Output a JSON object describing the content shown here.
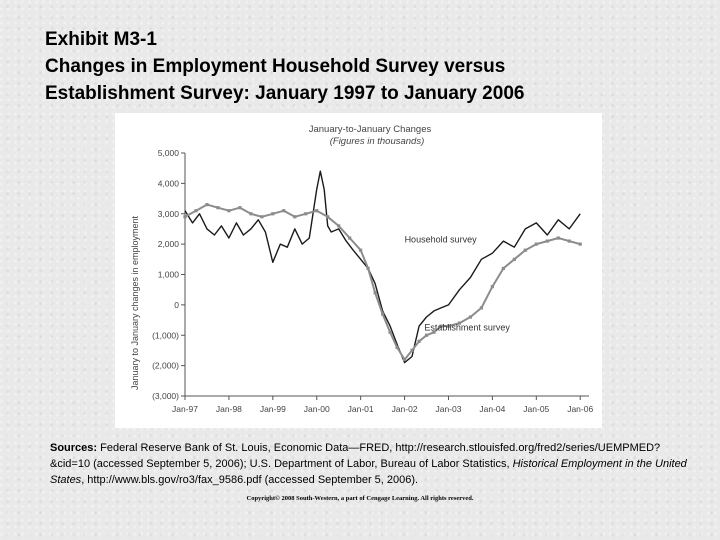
{
  "header": {
    "exhibit": "Exhibit M3-1",
    "title_line1": "Changes in Employment Household Survey versus",
    "title_line2": "Establishment Survey: January 1997 to January 2006"
  },
  "chart_data": {
    "type": "line",
    "title": "January-to-January Changes",
    "subtitle": "(Figures in thousands)",
    "xlabel": "",
    "ylabel": "January to January changes in employment",
    "xlim": [
      1997,
      2006.2
    ],
    "ylim": [
      -3000,
      5000
    ],
    "y_ticks": [
      5000,
      4000,
      3000,
      2000,
      1000,
      0,
      -1000,
      -2000,
      -3000
    ],
    "y_tick_labels": [
      "5,000",
      "4,000",
      "3,000",
      "2,000",
      "1,000",
      "0",
      "(1,000)",
      "(2,000)",
      "(3,000)"
    ],
    "x_ticks": [
      1997,
      1998,
      1999,
      2000,
      2001,
      2002,
      2003,
      2004,
      2005,
      2006
    ],
    "x_tick_labels": [
      "Jan-97",
      "Jan-98",
      "Jan-99",
      "Jan-00",
      "Jan-01",
      "Jan-02",
      "Jan-03",
      "Jan-04",
      "Jan-05",
      "Jan-06"
    ],
    "grid": false,
    "series": [
      {
        "name": "Household survey",
        "color": "#1a1a1a",
        "marker": "none",
        "x": [
          1997.0,
          1997.17,
          1997.33,
          1997.5,
          1997.67,
          1997.83,
          1998.0,
          1998.17,
          1998.33,
          1998.5,
          1998.67,
          1998.83,
          1999.0,
          1999.17,
          1999.33,
          1999.5,
          1999.67,
          1999.83,
          2000.0,
          2000.08,
          2000.17,
          2000.25,
          2000.33,
          2000.5,
          2000.67,
          2000.83,
          2001.0,
          2001.17,
          2001.33,
          2001.5,
          2001.67,
          2001.83,
          2002.0,
          2002.17,
          2002.33,
          2002.5,
          2002.67,
          2002.83,
          2003.0,
          2003.25,
          2003.5,
          2003.75,
          2004.0,
          2004.25,
          2004.5,
          2004.75,
          2005.0,
          2005.25,
          2005.5,
          2005.75,
          2006.0
        ],
        "y": [
          3100,
          2700,
          3000,
          2500,
          2300,
          2600,
          2200,
          2700,
          2300,
          2500,
          2800,
          2400,
          1400,
          2000,
          1900,
          2500,
          2000,
          2200,
          3800,
          4400,
          3800,
          2600,
          2400,
          2500,
          2100,
          1800,
          1500,
          1200,
          700,
          -200,
          -700,
          -1300,
          -1900,
          -1700,
          -700,
          -400,
          -200,
          -100,
          0,
          500,
          900,
          1500,
          1700,
          2100,
          1900,
          2500,
          2700,
          2300,
          2800,
          2500,
          3000
        ]
      },
      {
        "name": "Establishment survey",
        "color": "#8c8c8c",
        "marker": "square",
        "x": [
          1997.0,
          1997.25,
          1997.5,
          1997.75,
          1998.0,
          1998.25,
          1998.5,
          1998.75,
          1999.0,
          1999.25,
          1999.5,
          1999.75,
          2000.0,
          2000.25,
          2000.5,
          2000.75,
          2001.0,
          2001.17,
          2001.33,
          2001.5,
          2001.67,
          2001.83,
          2002.0,
          2002.17,
          2002.33,
          2002.5,
          2002.67,
          2002.83,
          2003.0,
          2003.25,
          2003.5,
          2003.75,
          2004.0,
          2004.25,
          2004.5,
          2004.75,
          2005.0,
          2005.25,
          2005.5,
          2005.75,
          2006.0
        ],
        "y": [
          2900,
          3100,
          3300,
          3200,
          3100,
          3200,
          3000,
          2900,
          3000,
          3100,
          2900,
          3000,
          3100,
          2900,
          2600,
          2200,
          1800,
          1200,
          400,
          -300,
          -900,
          -1400,
          -1800,
          -1500,
          -1200,
          -1000,
          -900,
          -700,
          -700,
          -600,
          -400,
          -100,
          600,
          1200,
          1500,
          1800,
          2000,
          2100,
          2200,
          2100,
          2000
        ]
      }
    ],
    "annotations": [
      {
        "text": "Household survey",
        "x": 2002.0,
        "y": 2050
      },
      {
        "text": "Establishment survey",
        "x": 2002.45,
        "y": -850
      }
    ]
  },
  "sources": {
    "label": "Sources:",
    "text1": " Federal Reserve Bank of St. Louis, Economic Data—FRED, http://research.stlouisfed.org/fred2/series/UEMPMED?&cid=10 (accessed September 5, 2006); U.S. Department of Labor, Bureau of Labor Statistics, ",
    "italic": "Historical Employment in the United States",
    "text2": ", http://www.bls.gov/ro3/fax_9586.pdf (accessed September 5, 2006)."
  },
  "copyright": "Copyright© 2008 South-Western, a part of Cengage Learning. All rights reserved."
}
